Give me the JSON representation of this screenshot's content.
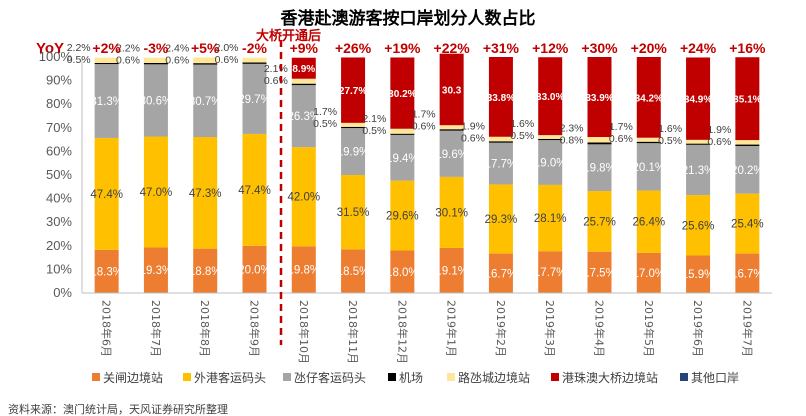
{
  "chart_data": {
    "type": "bar",
    "stacked": true,
    "title": "香港赴澳游客按口岸划分人数占比",
    "yoy_label": "YoY",
    "annotation": "大桥开通后",
    "categories": [
      "2018年6月",
      "2018年7月",
      "2018年8月",
      "2018年9月",
      "2018年10月",
      "2018年11月",
      "2018年12月",
      "2019年1月",
      "2019年2月",
      "2019年3月",
      "2019年4月",
      "2019年5月",
      "2019年6月",
      "2019年7月"
    ],
    "yoy": [
      "+2%",
      "-3%",
      "+5%",
      "-2%",
      "+9%",
      "+26%",
      "+19%",
      "+22%",
      "+31%",
      "+12%",
      "+30%",
      "+20%",
      "+24%",
      "+16%"
    ],
    "yticks": [
      "0%",
      "10%",
      "20%",
      "30%",
      "40%",
      "50%",
      "60%",
      "70%",
      "80%",
      "90%",
      "100%"
    ],
    "ylim": [
      0,
      100
    ],
    "legend_position": "bottom",
    "series": [
      {
        "name": "关闸边境站",
        "color": "#ed7d31",
        "values": [
          18.3,
          19.3,
          18.8,
          20.0,
          19.8,
          18.5,
          18.0,
          19.1,
          16.7,
          17.7,
          17.5,
          17.0,
          15.9,
          16.7
        ],
        "labels": [
          "18.3%",
          "19.3%",
          "18.8%",
          "20.0%",
          "19.8%",
          "18.5%",
          "18.0%",
          "19.1%",
          "16.7%",
          "17.7%",
          "17.5%",
          "17.0%",
          "15.9%",
          "16.7%"
        ]
      },
      {
        "name": "外港客运码头",
        "color": "#ffc000",
        "values": [
          47.4,
          47.0,
          47.3,
          47.4,
          42.0,
          31.5,
          29.6,
          30.1,
          29.3,
          28.1,
          25.7,
          26.4,
          25.6,
          25.4
        ],
        "labels": [
          "47.4%",
          "47.0%",
          "47.3%",
          "47.4%",
          "42.0%",
          "31.5%",
          "29.6%",
          "30.1%",
          "29.3%",
          "28.1%",
          "25.7%",
          "26.4%",
          "25.6%",
          "25.4%"
        ]
      },
      {
        "name": "氹仔客运码头",
        "color": "#a5a5a5",
        "values": [
          31.3,
          30.6,
          30.7,
          29.7,
          26.3,
          19.9,
          19.4,
          19.6,
          17.7,
          19.0,
          19.8,
          20.1,
          21.3,
          20.2
        ],
        "labels": [
          "31.3%",
          "30.6%",
          "30.7%",
          "29.7%",
          "26.3%",
          "19.9%",
          "19.4%",
          "19.6%",
          "17.7%",
          "19.0%",
          "19.8%",
          "20.1%",
          "21.3%",
          "20.2%"
        ]
      },
      {
        "name": "机场",
        "color": "#000000",
        "values": [
          0.5,
          0.6,
          0.6,
          0.6,
          0.6,
          0.5,
          0.5,
          0.6,
          0.6,
          0.5,
          0.8,
          0.6,
          0.5,
          0.6
        ],
        "labels": [
          "0.5%",
          "0.6%",
          "0.6%",
          "0.6%",
          "0.6%",
          "0.5%",
          "0.5%",
          "0.6%",
          "0.6%",
          "0.5%",
          "0.8%",
          "0.6%",
          "0.5%",
          "0.6%"
        ]
      },
      {
        "name": "路氹城边境站",
        "color": "#ffe699",
        "values": [
          2.2,
          2.2,
          2.4,
          2.0,
          2.1,
          1.7,
          2.1,
          1.7,
          1.9,
          1.6,
          2.3,
          1.7,
          1.6,
          1.9
        ],
        "labels": [
          "2.2%",
          "2.2%",
          "2.4%",
          "2.0%",
          "2.1%",
          "1.7%",
          "2.1%",
          "1.7%",
          "1.9%",
          "1.6%",
          "2.3%",
          "1.7%",
          "1.6%",
          "1.9%"
        ]
      },
      {
        "name": "港珠澳大桥边境站",
        "color": "#c00000",
        "values": [
          0,
          0,
          0,
          0,
          8.9,
          27.7,
          30.2,
          30.3,
          33.8,
          33.0,
          33.9,
          34.2,
          34.9,
          35.1
        ],
        "labels": [
          "",
          "",
          "",
          "",
          "8.9%",
          "27.7%",
          "30.2%",
          "30.3",
          "33.8%",
          "33.0%",
          "33.9%",
          "34.2%",
          "34.9%",
          "35.1%"
        ]
      },
      {
        "name": "其他口岸",
        "color": "#264478",
        "values": [
          0,
          0,
          0,
          0,
          0,
          0,
          0,
          0,
          0,
          0,
          0,
          0,
          0,
          0
        ],
        "labels": [
          "",
          "",
          "",
          "",
          "",
          "",
          "",
          "",
          "",
          "",
          "",
          "",
          "",
          ""
        ]
      }
    ],
    "source": "资料来源：澳门统计局，天风证券研究所整理"
  }
}
